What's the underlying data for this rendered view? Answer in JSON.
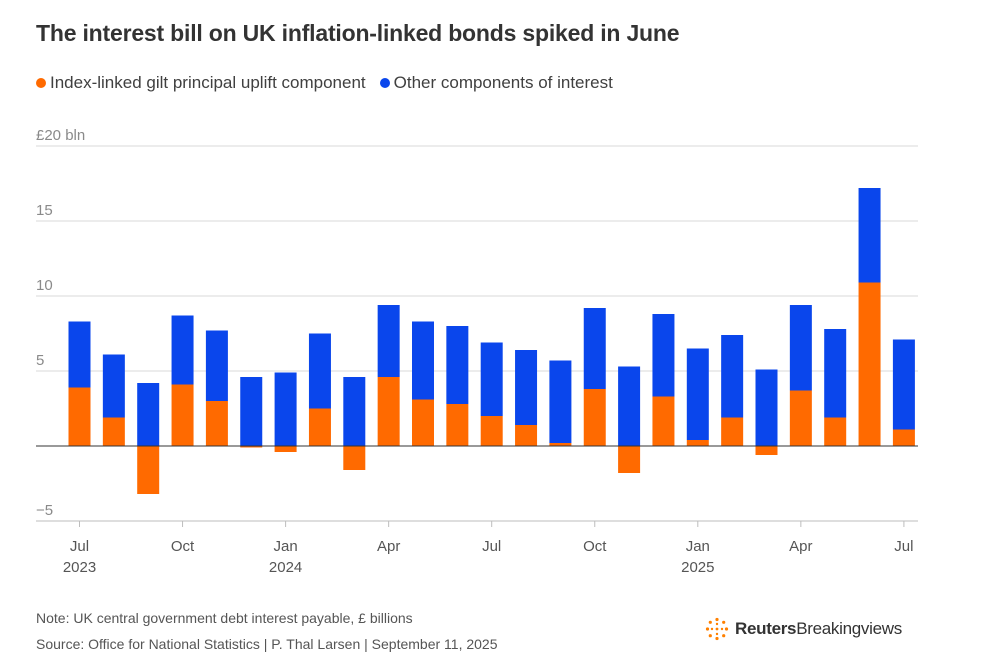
{
  "colors": {
    "uplift": "#ff6a00",
    "other": "#0a46ec",
    "grid": "#d9d9d9",
    "axis_text": "#8a8a8a",
    "tick_text": "#555555"
  },
  "chart_data": {
    "type": "bar",
    "stacked": true,
    "title": "The interest bill on UK inflation-linked bonds spiked in June",
    "legend": {
      "position": "top-left",
      "items": [
        {
          "name": "Index-linked gilt principal uplift component",
          "color": "#ff6a00"
        },
        {
          "name": "Other components of interest",
          "color": "#0a46ec"
        }
      ]
    },
    "y_unit_label": "£20 bln",
    "y_tick_labels": [
      "−5",
      "5",
      "10",
      "15"
    ],
    "ylim": [
      -5,
      20
    ],
    "grid": true,
    "x_ticks": [
      {
        "month": "Jul",
        "year": "2023",
        "index": 0
      },
      {
        "month": "Oct",
        "year": "",
        "index": 3
      },
      {
        "month": "Jan",
        "year": "2024",
        "index": 6
      },
      {
        "month": "Apr",
        "year": "",
        "index": 9
      },
      {
        "month": "Jul",
        "year": "",
        "index": 12
      },
      {
        "month": "Oct",
        "year": "",
        "index": 15
      },
      {
        "month": "Jan",
        "year": "2025",
        "index": 18
      },
      {
        "month": "Apr",
        "year": "",
        "index": 21
      },
      {
        "month": "Jul",
        "year": "",
        "index": 24
      }
    ],
    "categories": [
      "Jul 2023",
      "Aug 2023",
      "Sep 2023",
      "Oct 2023",
      "Nov 2023",
      "Dec 2023",
      "Jan 2024",
      "Feb 2024",
      "Mar 2024",
      "Apr 2024",
      "May 2024",
      "Jun 2024",
      "Jul 2024",
      "Aug 2024",
      "Sep 2024",
      "Oct 2024",
      "Nov 2024",
      "Dec 2024",
      "Jan 2025",
      "Feb 2025",
      "Mar 2025",
      "Apr 2025",
      "May 2025",
      "Jun 2025",
      "Jul 2025"
    ],
    "series": [
      {
        "name": "Index-linked gilt principal uplift component",
        "values": [
          3.9,
          1.9,
          -3.2,
          4.1,
          3.0,
          -0.1,
          -0.4,
          2.5,
          -1.6,
          4.6,
          3.1,
          2.8,
          2.0,
          1.4,
          0.2,
          3.8,
          -1.8,
          3.3,
          0.4,
          1.9,
          -0.6,
          3.7,
          1.9,
          10.9,
          1.1
        ]
      },
      {
        "name": "Other components of interest",
        "values": [
          4.4,
          4.2,
          4.2,
          4.6,
          4.7,
          4.6,
          4.9,
          5.0,
          4.6,
          4.8,
          5.2,
          5.2,
          4.9,
          5.0,
          5.5,
          5.4,
          5.3,
          5.5,
          6.1,
          5.5,
          5.1,
          5.7,
          5.9,
          6.3,
          6.0
        ]
      }
    ]
  },
  "footer": {
    "note": "Note: UK central government debt interest payable, £ billions",
    "source": "Source: Office for National Statistics | P. Thal Larsen | September 11, 2025",
    "brand_name": "Reuters",
    "brand_suffix": "Breakingviews"
  }
}
